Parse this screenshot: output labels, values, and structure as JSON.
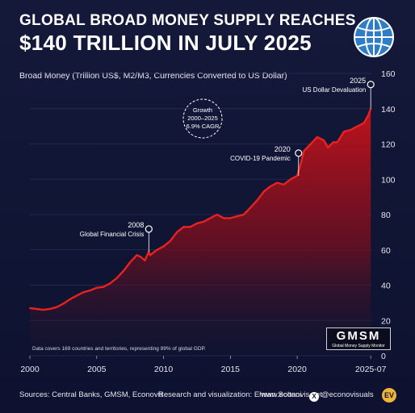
{
  "title": {
    "line1": "GLOBAL BROAD MONEY SUPPLY REACHES",
    "line2": "$140 TRILLION IN JULY 2025"
  },
  "subtitle": "Broad Money (Trillion US$, M2/M3, Currencies Converted to US Dollar)",
  "growth_badge": {
    "line1": "Growth",
    "line2": "2000–2025",
    "line3": "6.9% CAGR"
  },
  "annotations": [
    {
      "year_label": "2008",
      "text": "Global Financial Crisis",
      "x": 2008.9,
      "y": 59
    },
    {
      "year_label": "2020",
      "text": "COVID-19 Pandemic",
      "x": 2020.1,
      "y": 102
    },
    {
      "year_label": "2025",
      "text": "US Dollar Devaluation",
      "x": 2025.5,
      "y": 140
    }
  ],
  "note": "Data covers 169 countries and territories, representing 99% of global GDP.",
  "gmsm_logo": {
    "big": "GMSM",
    "small": "Global Money Supply Monitor"
  },
  "footer": {
    "sources": "Sources: Central Banks, GMSM, Econovis",
    "credit": "Research and visualization: Ehsan Soltani",
    "website": "www.econovis.net",
    "handle": "@econovisuals",
    "handle_icon": "x-logo-icon",
    "brand_icon": "ev-logo-icon"
  },
  "colors": {
    "line": "#e8231f",
    "fill_top": "#c8121a",
    "background": "#11152f",
    "grid": "#2a3056"
  },
  "chart_data": {
    "type": "area",
    "title": "GLOBAL BROAD MONEY SUPPLY REACHES $140 TRILLION IN JULY 2025",
    "ylabel": "Broad Money (Trillion US$, M2/M3, Currencies Converted to US Dollar)",
    "xlim": [
      2000,
      2025.55
    ],
    "ylim": [
      0,
      160
    ],
    "x_ticks": [
      "2000",
      "2005",
      "2010",
      "2015",
      "2020",
      "2025-07"
    ],
    "x_tick_values": [
      2000,
      2005,
      2010,
      2015,
      2020,
      2025.5
    ],
    "y_ticks": [
      0,
      20,
      40,
      60,
      80,
      100,
      120,
      140,
      160
    ],
    "grid": true,
    "series": [
      {
        "x": [
          2000,
          2000.5,
          2001,
          2001.5,
          2002,
          2002.5,
          2003,
          2003.5,
          2004,
          2004.5,
          2005,
          2005.5,
          2006,
          2006.5,
          2007,
          2007.5,
          2008,
          2008.3,
          2008.6,
          2008.9,
          2009,
          2009.5,
          2010,
          2010.5,
          2011,
          2011.5,
          2012,
          2012.5,
          2013,
          2013.5,
          2014,
          2014.5,
          2015,
          2015.5,
          2016,
          2016.5,
          2017,
          2017.5,
          2018,
          2018.5,
          2019,
          2019.5,
          2020,
          2020.3,
          2020.5,
          2021,
          2021.5,
          2022,
          2022.3,
          2022.7,
          2023,
          2023.5,
          2024,
          2024.5,
          2025,
          2025.3,
          2025.5
        ],
        "y": [
          27,
          26.5,
          26,
          26.5,
          27.5,
          29.5,
          32,
          34,
          36,
          37,
          38.5,
          39,
          41,
          44,
          48,
          53,
          57,
          56,
          54,
          59,
          57,
          60,
          62,
          65,
          70,
          73,
          73,
          75,
          76,
          78,
          80,
          78,
          78,
          79,
          80,
          84,
          88,
          93,
          96,
          98,
          97,
          100,
          102,
          110,
          116,
          120,
          124,
          122,
          118,
          121,
          121,
          127,
          128,
          130,
          132,
          136,
          140
        ]
      }
    ]
  }
}
